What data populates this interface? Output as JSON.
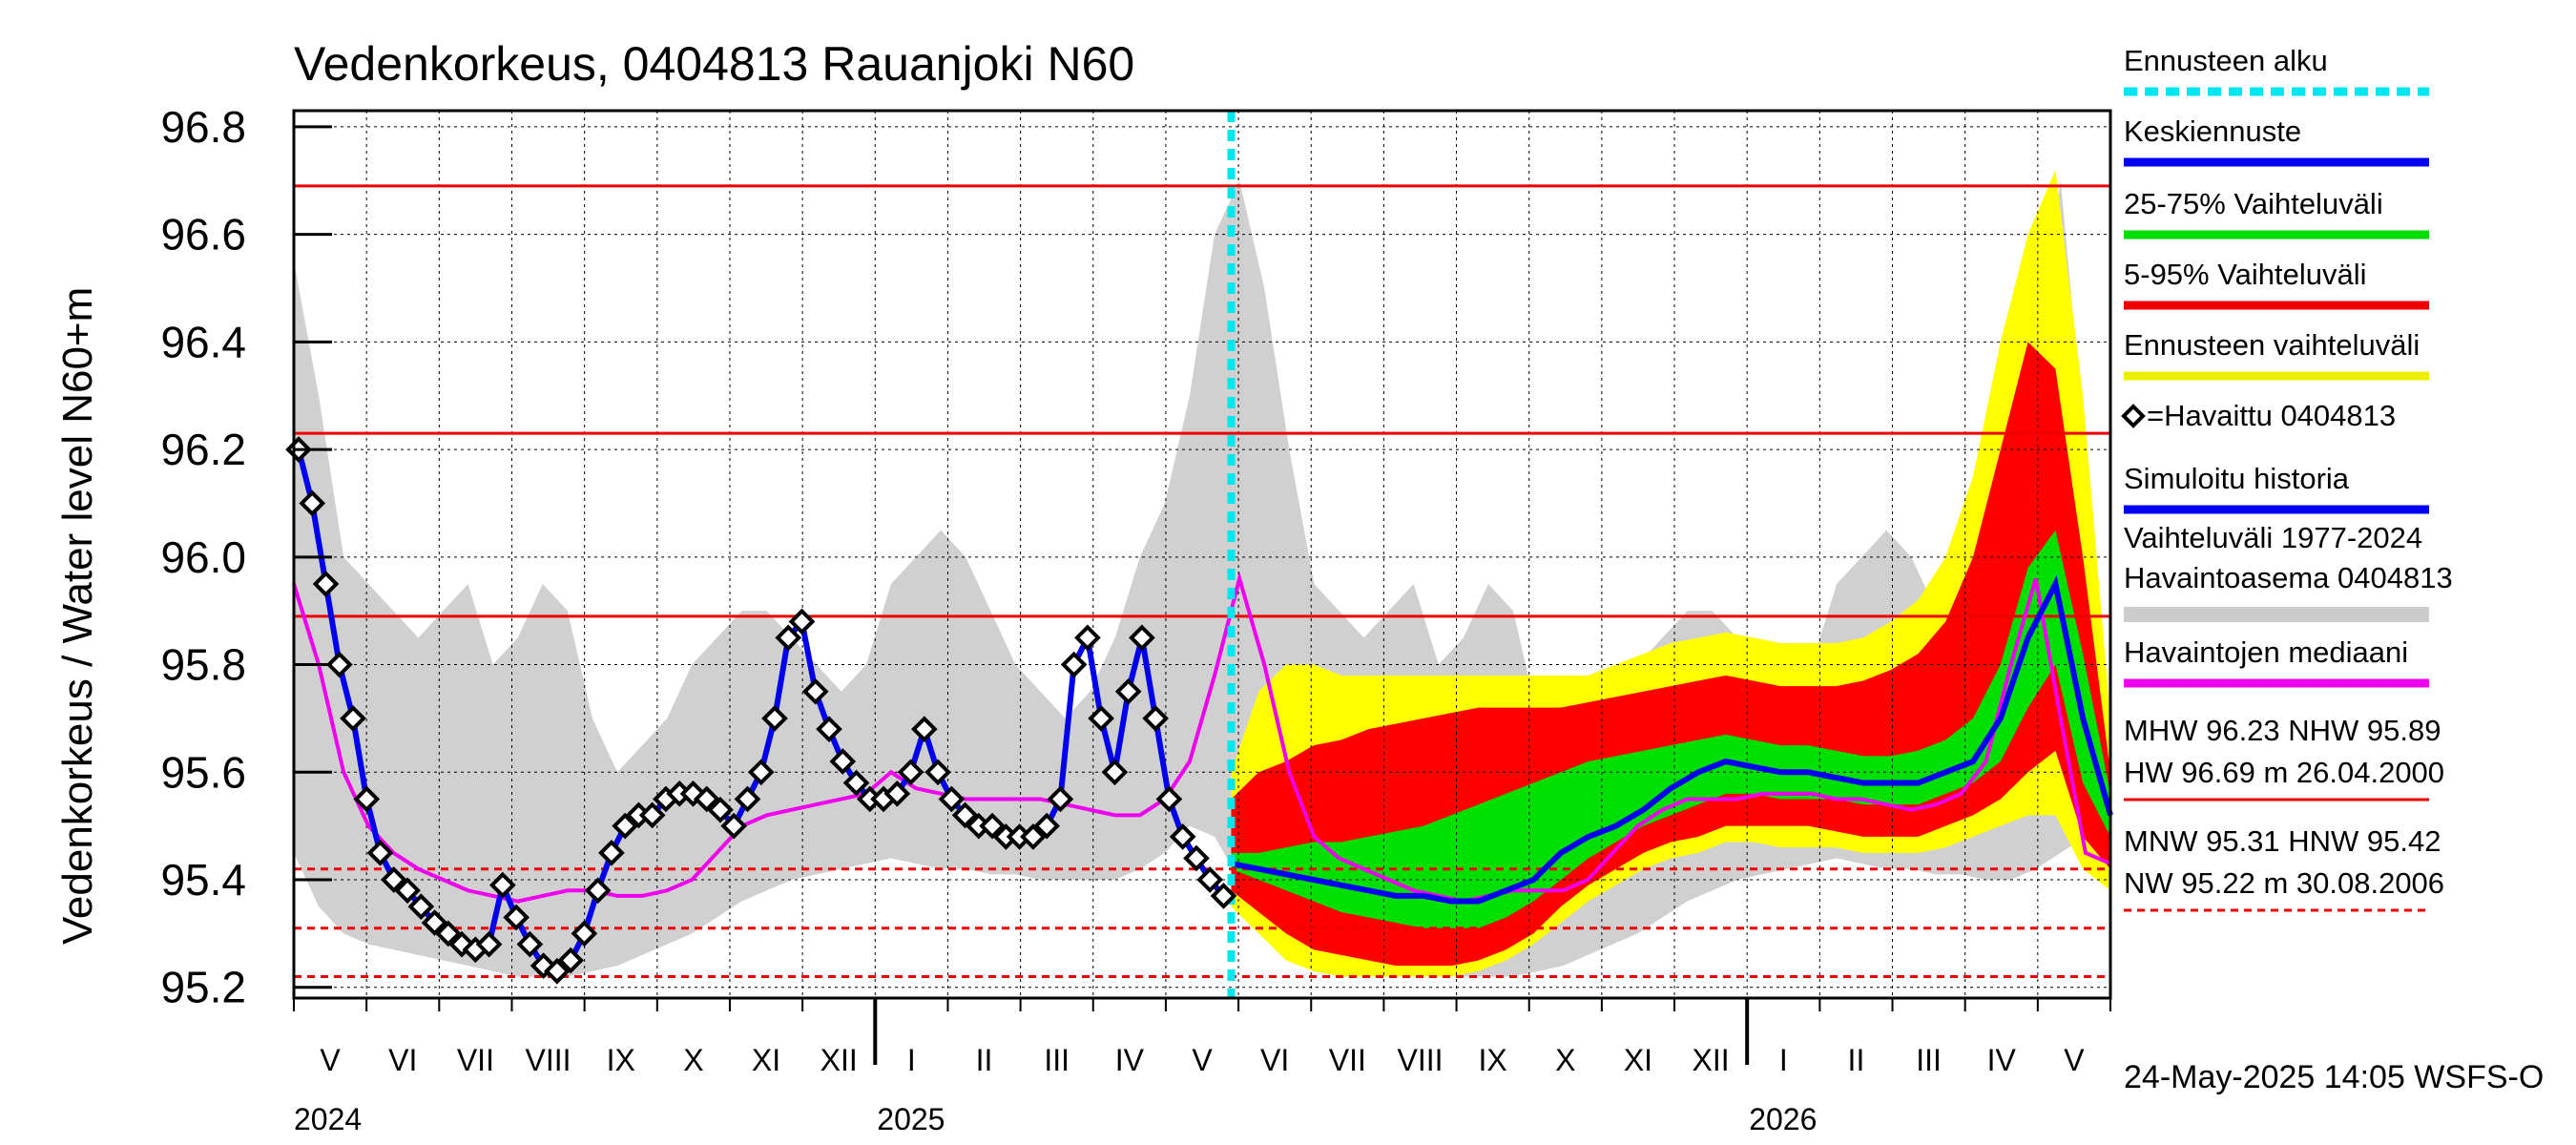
{
  "chart_data": {
    "type": "line",
    "title": "Vedenkorkeus, 0404813 Rauanjoki N60",
    "ylabel": "Vedenkorkeus / Water level   N60+m",
    "ylim": [
      95.18,
      96.83
    ],
    "y_ticks": [
      "95.2",
      "95.4",
      "95.6",
      "95.8",
      "96.0",
      "96.2",
      "96.4",
      "96.6",
      "96.8"
    ],
    "months": [
      "V",
      "VI",
      "VII",
      "VIII",
      "IX",
      "X",
      "XI",
      "XII",
      "I",
      "II",
      "III",
      "IV",
      "V",
      "VI",
      "VII",
      "VIII",
      "IX",
      "X",
      "XI",
      "XII",
      "I",
      "II",
      "III",
      "IV",
      "V"
    ],
    "years": [
      "2024",
      "2025",
      "2026"
    ],
    "forecast_start": "2025-05-24",
    "reference_lines": {
      "HW": 96.69,
      "MHW": 96.23,
      "NHW": 95.89,
      "HNW": 95.42,
      "MNW": 95.31,
      "NW": 95.22
    },
    "legend": [
      {
        "label": "Ennusteen alku",
        "color": "#00e5ee",
        "style": "dashed"
      },
      {
        "label": "Keskiennuste",
        "color": "#0000ee",
        "style": "solid"
      },
      {
        "label": "25-75% Vaihteluväli",
        "color": "#00dd00",
        "style": "solid"
      },
      {
        "label": "5-95% Vaihteluväli",
        "color": "#ee0000",
        "style": "solid"
      },
      {
        "label": "Ennusteen vaihteluväli",
        "color": "#eeee00",
        "style": "solid"
      },
      {
        "label": "=Havaittu 0404813",
        "color": "#000000",
        "style": "marker"
      },
      {
        "label": "Simuloitu historia",
        "color": "#0000ee",
        "style": "solid"
      },
      {
        "label": "Vaihteluväli 1977-2024",
        "label2": " Havaintoasema 0404813",
        "color": "#cccccc",
        "style": "solid"
      },
      {
        "label": "Havaintojen mediaani",
        "color": "#ee00ee",
        "style": "solid"
      }
    ],
    "stats_text": {
      "line1": "MHW  96.23 NHW  95.89",
      "line2": "HW  96.69 m 26.04.2000",
      "line3": "MNW  95.31 HNW  95.42",
      "line4": "NW  95.22 m 30.08.2006"
    },
    "observed": [
      96.2,
      96.1,
      95.95,
      95.8,
      95.7,
      95.55,
      95.45,
      95.4,
      95.38,
      95.35,
      95.32,
      95.3,
      95.28,
      95.27,
      95.28,
      95.39,
      95.33,
      95.28,
      95.24,
      95.23,
      95.25,
      95.3,
      95.38,
      95.45,
      95.5,
      95.52,
      95.52,
      95.55,
      95.56,
      95.56,
      95.55,
      95.53,
      95.5,
      95.55,
      95.6,
      95.7,
      95.85,
      95.88,
      95.75,
      95.68,
      95.62,
      95.58,
      95.55,
      95.55,
      95.56,
      95.6,
      95.68,
      95.6,
      95.55,
      95.52,
      95.5,
      95.5,
      95.48,
      95.48,
      95.48,
      95.5,
      95.55,
      95.8,
      95.85,
      95.7,
      95.6,
      95.75,
      95.85,
      95.7,
      95.55,
      95.48,
      95.44,
      95.4,
      95.37
    ],
    "median": [
      95.95,
      95.8,
      95.6,
      95.5,
      95.45,
      95.42,
      95.4,
      95.38,
      95.37,
      95.36,
      95.37,
      95.38,
      95.38,
      95.37,
      95.37,
      95.38,
      95.4,
      95.45,
      95.5,
      95.52,
      95.53,
      95.54,
      95.55,
      95.56,
      95.6,
      95.57,
      95.56,
      95.55,
      95.55,
      95.55,
      95.55,
      95.54,
      95.53,
      95.52,
      95.52,
      95.55,
      95.62,
      95.78,
      95.96,
      95.8,
      95.6,
      95.48,
      95.44,
      95.42,
      95.4,
      95.38,
      95.37,
      95.36,
      95.37,
      95.38,
      95.38,
      95.38,
      95.4,
      95.45,
      95.5,
      95.53,
      95.55,
      95.55,
      95.55,
      95.56,
      95.56,
      95.56,
      95.55,
      95.55,
      95.54,
      95.53,
      95.54,
      95.56,
      95.62,
      95.8,
      95.96,
      95.7,
      95.45,
      95.43
    ],
    "forecast_median": [
      95.43,
      95.42,
      95.41,
      95.4,
      95.39,
      95.38,
      95.37,
      95.37,
      95.36,
      95.36,
      95.38,
      95.4,
      95.45,
      95.48,
      95.5,
      95.53,
      95.57,
      95.6,
      95.62,
      95.61,
      95.6,
      95.6,
      95.59,
      95.58,
      95.58,
      95.58,
      95.6,
      95.62,
      95.7,
      95.85,
      95.95,
      95.7,
      95.52
    ],
    "band_50": {
      "low": [
        95.42,
        95.4,
        95.38,
        95.36,
        95.34,
        95.33,
        95.32,
        95.31,
        95.31,
        95.31,
        95.33,
        95.36,
        95.4,
        95.44,
        95.47,
        95.5,
        95.52,
        95.54,
        95.56,
        95.56,
        95.55,
        95.55,
        95.55,
        95.54,
        95.54,
        95.54,
        95.56,
        95.58,
        95.62,
        95.72,
        95.8,
        95.58,
        95.48
      ],
      "high": [
        95.45,
        95.45,
        95.46,
        95.47,
        95.47,
        95.48,
        95.49,
        95.5,
        95.52,
        95.54,
        95.56,
        95.58,
        95.6,
        95.62,
        95.63,
        95.64,
        95.65,
        95.66,
        95.67,
        95.66,
        95.65,
        95.65,
        95.64,
        95.63,
        95.63,
        95.64,
        95.66,
        95.7,
        95.8,
        95.98,
        96.05,
        95.82,
        95.56
      ]
    },
    "band_90": {
      "low": [
        95.38,
        95.34,
        95.3,
        95.27,
        95.26,
        95.25,
        95.24,
        95.24,
        95.24,
        95.25,
        95.27,
        95.3,
        95.35,
        95.39,
        95.42,
        95.45,
        95.47,
        95.48,
        95.5,
        95.5,
        95.5,
        95.5,
        95.49,
        95.48,
        95.48,
        95.48,
        95.5,
        95.52,
        95.55,
        95.6,
        95.64,
        95.48,
        95.42
      ],
      "high": [
        95.55,
        95.6,
        95.62,
        95.65,
        95.66,
        95.68,
        95.69,
        95.7,
        95.71,
        95.72,
        95.72,
        95.72,
        95.72,
        95.73,
        95.74,
        95.75,
        95.76,
        95.77,
        95.78,
        95.77,
        95.76,
        95.76,
        95.76,
        95.77,
        95.79,
        95.82,
        95.88,
        96.0,
        96.2,
        96.4,
        96.35,
        96.0,
        95.6
      ]
    },
    "band_full": {
      "low": [
        95.35,
        95.3,
        95.25,
        95.23,
        95.22,
        95.22,
        95.22,
        95.22,
        95.22,
        95.23,
        95.25,
        95.28,
        95.32,
        95.36,
        95.39,
        95.42,
        95.44,
        95.45,
        95.47,
        95.47,
        95.46,
        95.46,
        95.46,
        95.45,
        95.45,
        95.45,
        95.46,
        95.48,
        95.5,
        95.52,
        95.52,
        95.42,
        95.38
      ],
      "high": [
        95.6,
        95.75,
        95.8,
        95.8,
        95.78,
        95.78,
        95.78,
        95.78,
        95.78,
        95.78,
        95.78,
        95.78,
        95.78,
        95.78,
        95.8,
        95.82,
        95.84,
        95.85,
        95.86,
        95.85,
        95.84,
        95.84,
        95.84,
        95.85,
        95.88,
        95.92,
        96.0,
        96.15,
        96.4,
        96.6,
        96.72,
        96.3,
        95.7
      ]
    },
    "history_range": {
      "low": [
        95.45,
        95.35,
        95.3,
        95.28,
        95.27,
        95.26,
        95.25,
        95.24,
        95.23,
        95.22,
        95.22,
        95.22,
        95.23,
        95.24,
        95.26,
        95.28,
        95.3,
        95.33,
        95.36,
        95.38,
        95.4,
        95.41,
        95.42,
        95.43,
        95.44,
        95.43,
        95.42,
        95.42,
        95.41,
        95.41,
        95.4,
        95.4,
        95.4,
        95.4,
        95.42,
        95.45,
        95.5,
        95.48,
        95.4,
        95.35,
        95.3,
        95.28,
        95.27,
        95.26,
        95.25,
        95.24,
        95.23,
        95.22,
        95.22,
        95.22,
        95.23,
        95.24,
        95.26,
        95.28,
        95.3,
        95.33,
        95.36,
        95.38,
        95.4,
        95.41,
        95.42,
        95.43,
        95.44,
        95.43,
        95.42,
        95.42,
        95.41,
        95.41,
        95.4,
        95.4,
        95.42,
        95.45,
        95.48,
        95.42
      ],
      "high": [
        96.55,
        96.3,
        96.0,
        95.95,
        95.9,
        95.85,
        95.9,
        95.95,
        95.8,
        95.85,
        95.95,
        95.9,
        95.7,
        95.6,
        95.65,
        95.7,
        95.8,
        95.85,
        95.9,
        95.9,
        95.85,
        95.8,
        95.75,
        95.8,
        95.95,
        96.0,
        96.05,
        96.0,
        95.9,
        95.8,
        95.75,
        95.7,
        95.75,
        95.85,
        96.0,
        96.1,
        96.3,
        96.6,
        96.7,
        96.5,
        96.2,
        95.95,
        95.9,
        95.85,
        95.9,
        95.95,
        95.8,
        95.85,
        95.95,
        95.9,
        95.7,
        95.6,
        95.65,
        95.7,
        95.8,
        95.85,
        95.9,
        95.9,
        95.85,
        95.8,
        95.75,
        95.8,
        95.95,
        96.0,
        96.05,
        96.0,
        95.9,
        95.8,
        95.8,
        96.0,
        96.4,
        96.7,
        96.2,
        95.5
      ]
    }
  },
  "footer": {
    "timestamp": "24-May-2025 14:05 WSFS-O"
  }
}
